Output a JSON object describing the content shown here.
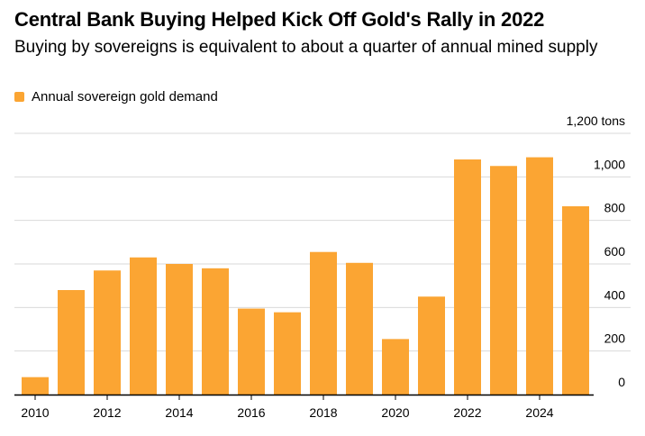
{
  "header": {
    "title": "Central Bank Buying Helped Kick Off Gold's Rally in 2022",
    "subtitle": "Buying by sovereigns is equivalent to about a quarter of annual mined supply"
  },
  "legend": {
    "label": "Annual sovereign gold demand"
  },
  "colors": {
    "bar": "#fba533",
    "grid": "#d9d9d9",
    "axis": "#000000"
  },
  "chart_data": {
    "type": "bar",
    "title": "Central Bank Buying Helped Kick Off Gold's Rally in 2022",
    "subtitle": "Buying by sovereigns is equivalent to about a quarter of annual mined supply",
    "xlabel": "",
    "ylabel": "",
    "unit_label": "1,200 tons",
    "categories": [
      "2010",
      "2011",
      "2012",
      "2013",
      "2014",
      "2015",
      "2016",
      "2017",
      "2018",
      "2019",
      "2020",
      "2021",
      "2022",
      "2023",
      "2024",
      "2025"
    ],
    "series": [
      {
        "name": "Annual sovereign gold demand",
        "values": [
          80,
          480,
          570,
          630,
          600,
          580,
          395,
          378,
          655,
          605,
          255,
          450,
          1080,
          1050,
          1090,
          865
        ]
      }
    ],
    "ylim": [
      0,
      1200
    ],
    "y_ticks": [
      0,
      200,
      400,
      600,
      800,
      1000,
      1200
    ],
    "y_tick_labels": [
      "0",
      "200",
      "400",
      "600",
      "800",
      "1,000",
      "1,200 tons"
    ],
    "x_tick_labels": [
      "2010",
      "2012",
      "2014",
      "2016",
      "2018",
      "2020",
      "2022",
      "2024"
    ],
    "grid": true,
    "y_axis_side": "right",
    "legend_position": "top-left"
  }
}
